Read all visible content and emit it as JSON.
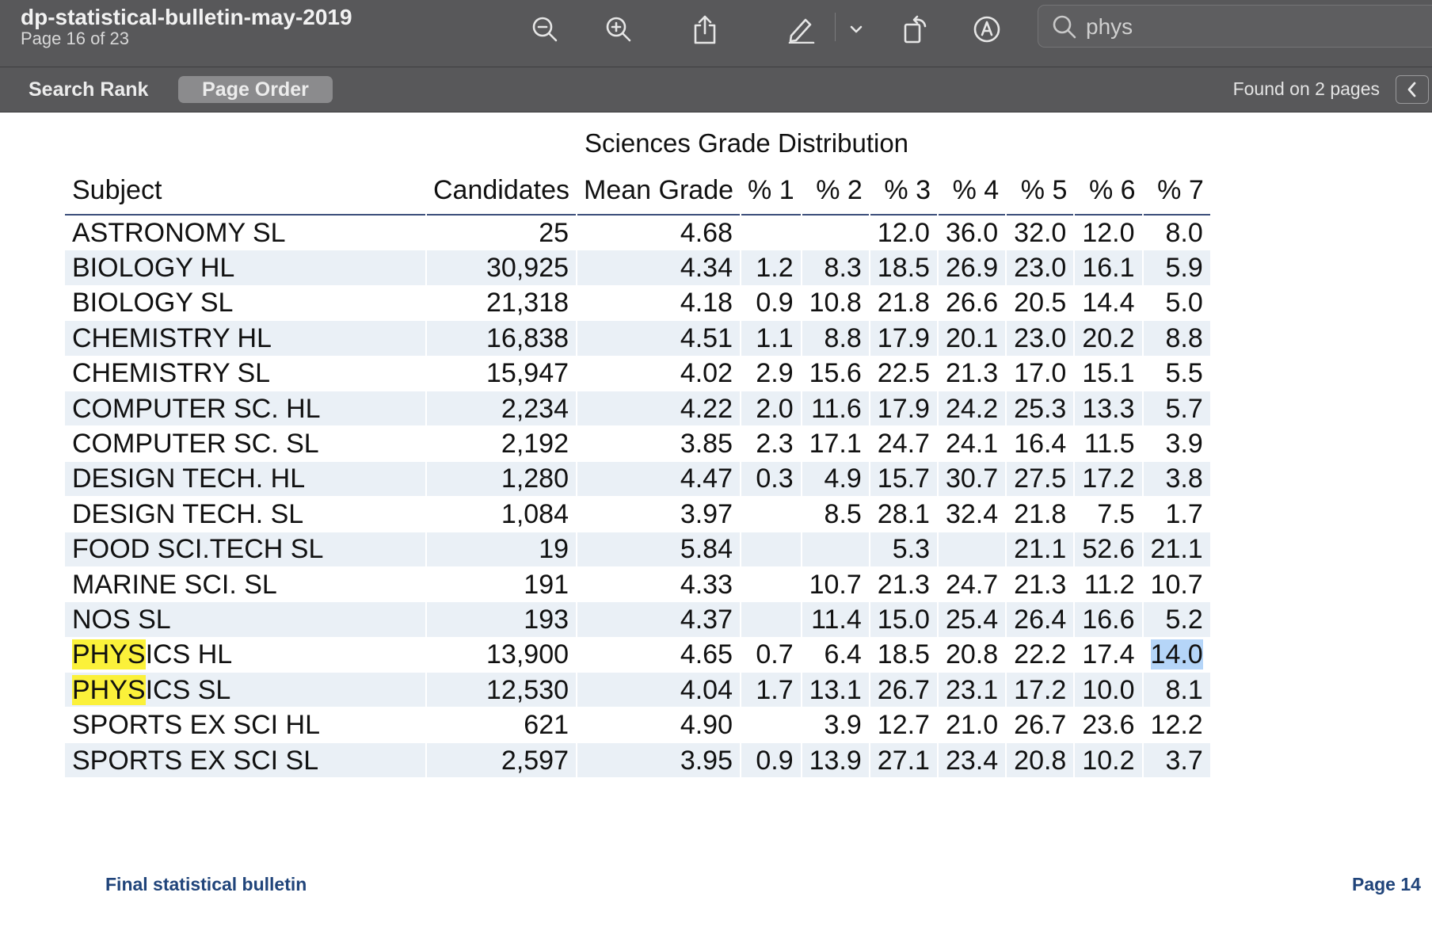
{
  "window": {
    "doc_title": "dp-statistical-bulletin-may-2019",
    "page_info": "Page 16 of 23"
  },
  "toolbar": {
    "icons": [
      "zoom-out-icon",
      "zoom-in-icon",
      "share-icon",
      "markup-pen-icon",
      "chevron-down-icon",
      "rotate-icon",
      "markup-circle-icon"
    ],
    "search_value": "phys"
  },
  "tabs": {
    "search_rank": "Search Rank",
    "page_order": "Page Order",
    "found_text": "Found on 2 pages"
  },
  "colors": {
    "toolbar_bg": "#58585a",
    "row_shade": "#eaf0f6",
    "search_highlight": "#fbf13a",
    "selection": "#b5d5f8",
    "footer_text": "#20447a"
  },
  "table": {
    "title": "Sciences Grade Distribution",
    "headers": [
      "Subject",
      "Candidates",
      "Mean Grade",
      "% 1",
      "% 2",
      "% 3",
      "% 4",
      "% 5",
      "% 6",
      "% 7"
    ],
    "highlight_term": "PHYS",
    "selected_cell": {
      "row": 12,
      "col": 9
    },
    "rows": [
      [
        "ASTRONOMY SL",
        "25",
        "4.68",
        "",
        "",
        "12.0",
        "36.0",
        "32.0",
        "12.0",
        "8.0"
      ],
      [
        "BIOLOGY HL",
        "30,925",
        "4.34",
        "1.2",
        "8.3",
        "18.5",
        "26.9",
        "23.0",
        "16.1",
        "5.9"
      ],
      [
        "BIOLOGY SL",
        "21,318",
        "4.18",
        "0.9",
        "10.8",
        "21.8",
        "26.6",
        "20.5",
        "14.4",
        "5.0"
      ],
      [
        "CHEMISTRY HL",
        "16,838",
        "4.51",
        "1.1",
        "8.8",
        "17.9",
        "20.1",
        "23.0",
        "20.2",
        "8.8"
      ],
      [
        "CHEMISTRY SL",
        "15,947",
        "4.02",
        "2.9",
        "15.6",
        "22.5",
        "21.3",
        "17.0",
        "15.1",
        "5.5"
      ],
      [
        "COMPUTER SC. HL",
        "2,234",
        "4.22",
        "2.0",
        "11.6",
        "17.9",
        "24.2",
        "25.3",
        "13.3",
        "5.7"
      ],
      [
        "COMPUTER SC. SL",
        "2,192",
        "3.85",
        "2.3",
        "17.1",
        "24.7",
        "24.1",
        "16.4",
        "11.5",
        "3.9"
      ],
      [
        "DESIGN TECH. HL",
        "1,280",
        "4.47",
        "0.3",
        "4.9",
        "15.7",
        "30.7",
        "27.5",
        "17.2",
        "3.8"
      ],
      [
        "DESIGN TECH. SL",
        "1,084",
        "3.97",
        "",
        "8.5",
        "28.1",
        "32.4",
        "21.8",
        "7.5",
        "1.7"
      ],
      [
        "FOOD SCI.TECH SL",
        "19",
        "5.84",
        "",
        "",
        "5.3",
        "",
        "21.1",
        "52.6",
        "21.1"
      ],
      [
        "MARINE SCI. SL",
        "191",
        "4.33",
        "",
        "10.7",
        "21.3",
        "24.7",
        "21.3",
        "11.2",
        "10.7"
      ],
      [
        "NOS SL",
        "193",
        "4.37",
        "",
        "11.4",
        "15.0",
        "25.4",
        "26.4",
        "16.6",
        "5.2"
      ],
      [
        "PHYSICS HL",
        "13,900",
        "4.65",
        "0.7",
        "6.4",
        "18.5",
        "20.8",
        "22.2",
        "17.4",
        "14.0"
      ],
      [
        "PHYSICS SL",
        "12,530",
        "4.04",
        "1.7",
        "13.1",
        "26.7",
        "23.1",
        "17.2",
        "10.0",
        "8.1"
      ],
      [
        "SPORTS EX SCI HL",
        "621",
        "4.90",
        "",
        "3.9",
        "12.7",
        "21.0",
        "26.7",
        "23.6",
        "12.2"
      ],
      [
        "SPORTS EX SCI SL",
        "2,597",
        "3.95",
        "0.9",
        "13.9",
        "27.1",
        "23.4",
        "20.8",
        "10.2",
        "3.7"
      ]
    ]
  },
  "footer": {
    "left": "Final statistical bulletin",
    "right": "Page 14"
  }
}
